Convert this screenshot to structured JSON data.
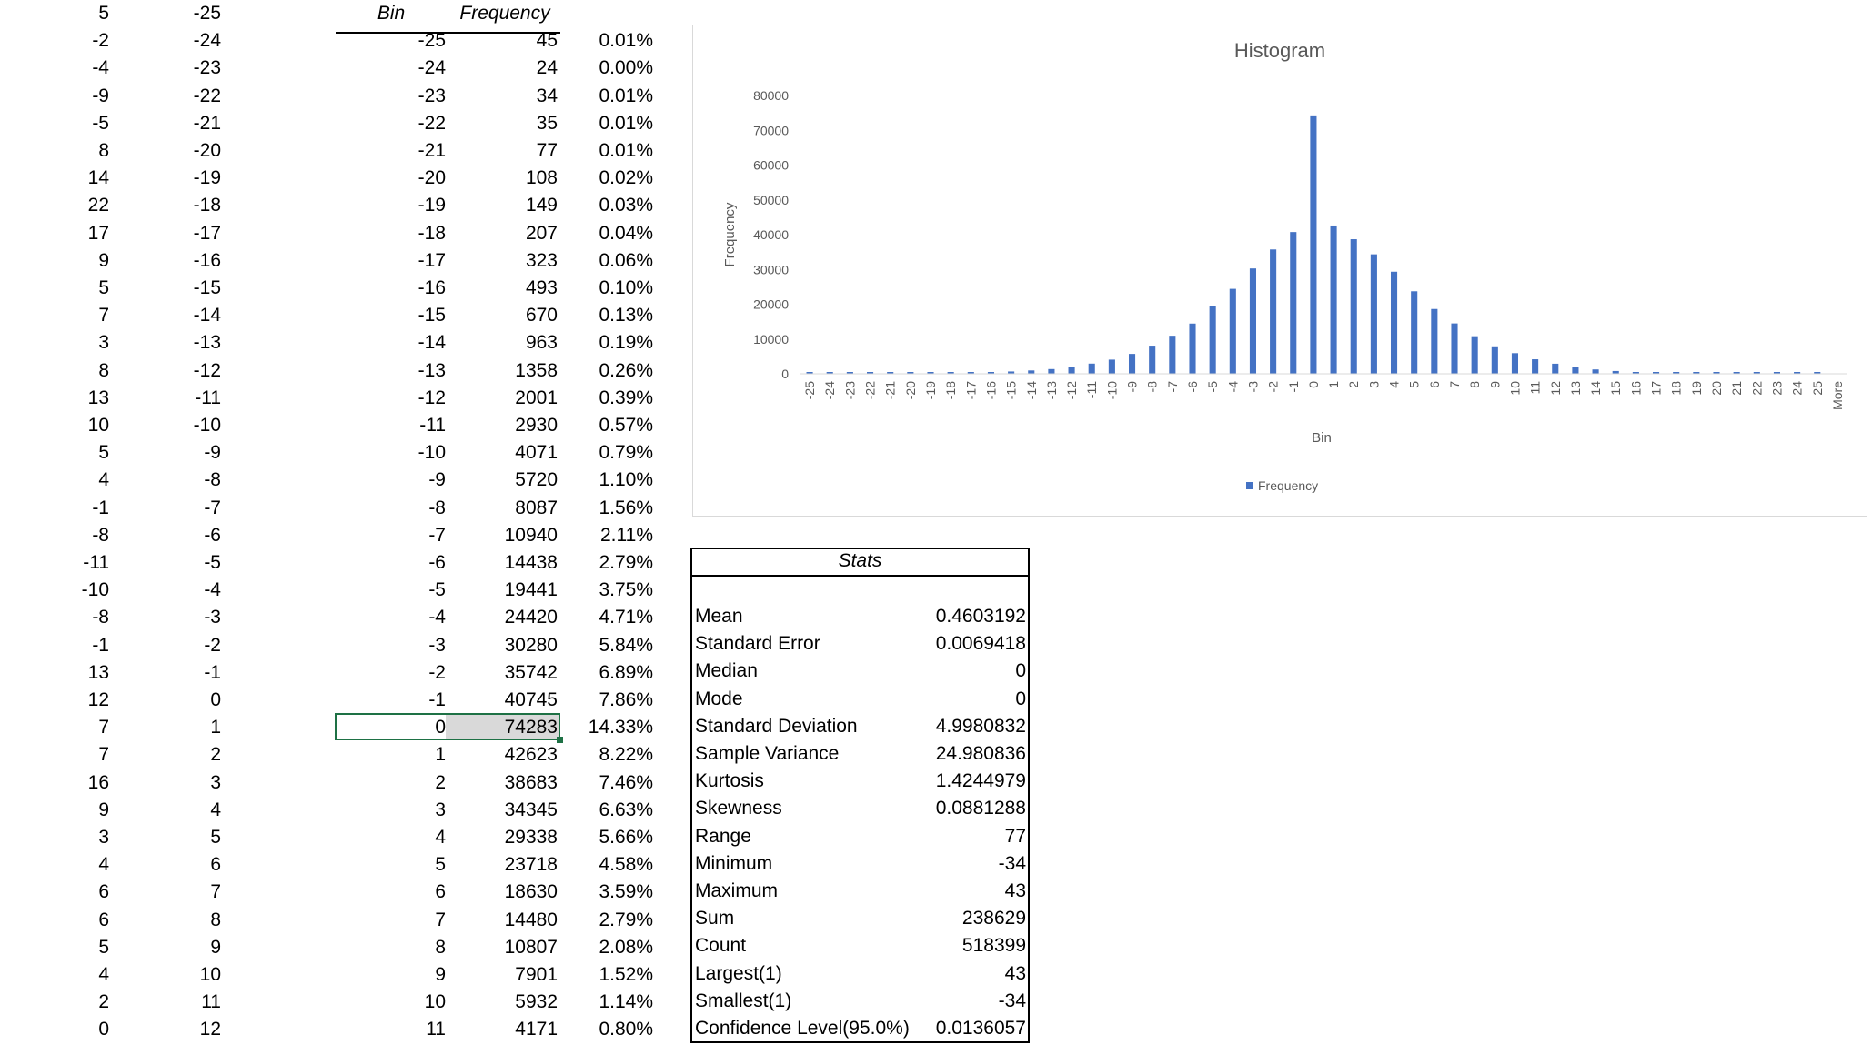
{
  "columns": {
    "a": [
      "5",
      "-2",
      "-4",
      "-9",
      "-5",
      "8",
      "14",
      "22",
      "17",
      "9",
      "5",
      "7",
      "3",
      "8",
      "13",
      "10",
      "5",
      "4",
      "-1",
      "-8",
      "-11",
      "-10",
      "-8",
      "-1",
      "13",
      "12",
      "7",
      "7",
      "16",
      "9",
      "3",
      "4",
      "6",
      "6",
      "5",
      "4",
      "2",
      "0"
    ],
    "b": [
      "-25",
      "-24",
      "-23",
      "-22",
      "-21",
      "-20",
      "-19",
      "-18",
      "-17",
      "-16",
      "-15",
      "-14",
      "-13",
      "-12",
      "-11",
      "-10",
      "-9",
      "-8",
      "-7",
      "-6",
      "-5",
      "-4",
      "-3",
      "-2",
      "-1",
      "0",
      "1",
      "2",
      "3",
      "4",
      "5",
      "6",
      "7",
      "8",
      "9",
      "10",
      "11",
      "12"
    ]
  },
  "freq_table": {
    "header_bin": "Bin",
    "header_freq": "Frequency",
    "bins": [
      "-25",
      "-24",
      "-23",
      "-22",
      "-21",
      "-20",
      "-19",
      "-18",
      "-17",
      "-16",
      "-15",
      "-14",
      "-13",
      "-12",
      "-11",
      "-10",
      "-9",
      "-8",
      "-7",
      "-6",
      "-5",
      "-4",
      "-3",
      "-2",
      "-1",
      "0",
      "1",
      "2",
      "3",
      "4",
      "5",
      "6",
      "7",
      "8",
      "9",
      "10",
      "11"
    ],
    "freqs": [
      "45",
      "24",
      "34",
      "35",
      "77",
      "108",
      "149",
      "207",
      "323",
      "493",
      "670",
      "963",
      "1358",
      "2001",
      "2930",
      "4071",
      "5720",
      "8087",
      "10940",
      "14438",
      "19441",
      "24420",
      "30280",
      "35742",
      "40745",
      "74283",
      "42623",
      "38683",
      "34345",
      "29338",
      "23718",
      "18630",
      "14480",
      "10807",
      "7901",
      "5932",
      "4171"
    ],
    "pcts": [
      "0.01%",
      "0.00%",
      "0.01%",
      "0.01%",
      "0.01%",
      "0.02%",
      "0.03%",
      "0.04%",
      "0.06%",
      "0.10%",
      "0.13%",
      "0.19%",
      "0.26%",
      "0.39%",
      "0.57%",
      "0.79%",
      "1.10%",
      "1.56%",
      "2.11%",
      "2.79%",
      "3.75%",
      "4.71%",
      "5.84%",
      "6.89%",
      "7.86%",
      "14.33%",
      "8.22%",
      "7.46%",
      "6.63%",
      "5.66%",
      "4.58%",
      "3.59%",
      "2.79%",
      "2.08%",
      "1.52%",
      "1.14%",
      "0.80%"
    ]
  },
  "stats": {
    "title": "Stats",
    "rows": [
      {
        "label": "Mean",
        "value": "0.4603192"
      },
      {
        "label": "Standard Error",
        "value": "0.0069418"
      },
      {
        "label": "Median",
        "value": "0"
      },
      {
        "label": "Mode",
        "value": "0"
      },
      {
        "label": "Standard Deviation",
        "value": "4.9980832"
      },
      {
        "label": "Sample Variance",
        "value": "24.980836"
      },
      {
        "label": "Kurtosis",
        "value": "1.4244979"
      },
      {
        "label": "Skewness",
        "value": "0.0881288"
      },
      {
        "label": "Range",
        "value": "77"
      },
      {
        "label": "Minimum",
        "value": "-34"
      },
      {
        "label": "Maximum",
        "value": "43"
      },
      {
        "label": "Sum",
        "value": "238629"
      },
      {
        "label": "Count",
        "value": "518399"
      },
      {
        "label": "Largest(1)",
        "value": "43"
      },
      {
        "label": "Smallest(1)",
        "value": "-34"
      },
      {
        "label": "Confidence Level(95.0%)",
        "value": "0.0136057"
      }
    ]
  },
  "chart_data": {
    "type": "bar",
    "title": "Histogram",
    "xlabel": "Bin",
    "ylabel": "Frequency",
    "ylim": [
      0,
      80000
    ],
    "yticks": [
      0,
      10000,
      20000,
      30000,
      40000,
      50000,
      60000,
      70000,
      80000
    ],
    "grid": false,
    "legend": "bottom",
    "color": "#4472c4",
    "categories": [
      "-25",
      "-24",
      "-23",
      "-22",
      "-21",
      "-20",
      "-19",
      "-18",
      "-17",
      "-16",
      "-15",
      "-14",
      "-13",
      "-12",
      "-11",
      "-10",
      "-9",
      "-8",
      "-7",
      "-6",
      "-5",
      "-4",
      "-3",
      "-2",
      "-1",
      "0",
      "1",
      "2",
      "3",
      "4",
      "5",
      "6",
      "7",
      "8",
      "9",
      "10",
      "11",
      "12",
      "13",
      "14",
      "15",
      "16",
      "17",
      "18",
      "19",
      "20",
      "21",
      "22",
      "23",
      "24",
      "25",
      "More"
    ],
    "series": [
      {
        "name": "Frequency",
        "values": [
          45,
          24,
          34,
          35,
          77,
          108,
          149,
          207,
          323,
          493,
          670,
          963,
          1358,
          2001,
          2930,
          4071,
          5720,
          8087,
          10940,
          14438,
          19441,
          24420,
          30280,
          35742,
          40745,
          74283,
          42623,
          38683,
          34345,
          29338,
          23718,
          18630,
          14480,
          10807,
          7901,
          5932,
          4171,
          2900,
          1950,
          1250,
          800,
          500,
          300,
          170,
          100,
          60,
          35,
          20,
          12,
          6,
          3,
          0
        ]
      }
    ]
  }
}
